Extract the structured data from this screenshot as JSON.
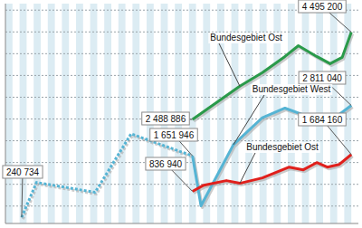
{
  "chart_data": {
    "type": "line",
    "xlim": [
      0,
      25
    ],
    "xticks": [
      0,
      1,
      2,
      3,
      4,
      5,
      6,
      7,
      8,
      9,
      10,
      11,
      12,
      13,
      14,
      15,
      16,
      17,
      18,
      19,
      20,
      21,
      22,
      23,
      24,
      25
    ],
    "ylim": [
      100000,
      5150000
    ],
    "yticks": [
      500000,
      1000000,
      1500000,
      2000000,
      2500000,
      3000000,
      3500000,
      4000000,
      4500000,
      5000000
    ],
    "grid": true,
    "tick_labels": false,
    "data_labels": true,
    "series": [
      {
        "color": "#55b4d4",
        "line_style": "dotted",
        "x": [
          1.15,
          2.2,
          6.35,
          8.9,
          13.25
        ],
        "values": [
          240734,
          1043000,
          816000,
          2159000,
          1651946
        ],
        "value_labels": [
          "240 734",
          null,
          null,
          null,
          "1 651 946"
        ]
      },
      {
        "name": "Bundesgebiet West",
        "color": "#55b4d4",
        "line_style": "solid",
        "x": [
          13.25,
          13.85,
          16.15,
          18.2,
          19.8,
          21.4,
          23.0,
          24.5
        ],
        "values": [
          1651946,
          506000,
          1911000,
          2531000,
          2750000,
          2560000,
          2450000,
          2811040
        ],
        "value_labels": [
          null,
          null,
          null,
          null,
          null,
          null,
          null,
          "2 811 040"
        ]
      },
      {
        "name": "Bundesgebiet Ost",
        "color": "#2a9a4a",
        "line_style": "solid",
        "x": [
          13.25,
          16.6,
          18.2,
          19.8,
          20.75,
          22.05,
          23.0,
          23.85,
          24.5
        ],
        "values": [
          2488886,
          3254000,
          3564000,
          3936000,
          4184000,
          3936000,
          3770000,
          3915000,
          4495200
        ],
        "value_labels": [
          "2 488 886",
          null,
          null,
          null,
          null,
          null,
          null,
          null,
          "4 495 200"
        ]
      },
      {
        "name": "Bundesgebiet Ost",
        "color": "#e0201c",
        "line_style": "solid",
        "x": [
          13.25,
          14.05,
          15.65,
          16.6,
          18.2,
          20.1,
          21.1,
          22.05,
          22.8,
          23.65,
          24.5
        ],
        "values": [
          836940,
          980000,
          1085000,
          1023000,
          1147000,
          1395000,
          1333000,
          1498000,
          1395000,
          1457000,
          1684160
        ],
        "value_labels": [
          "836 940",
          null,
          null,
          null,
          null,
          null,
          null,
          null,
          null,
          null,
          "1 684 160"
        ]
      }
    ]
  }
}
